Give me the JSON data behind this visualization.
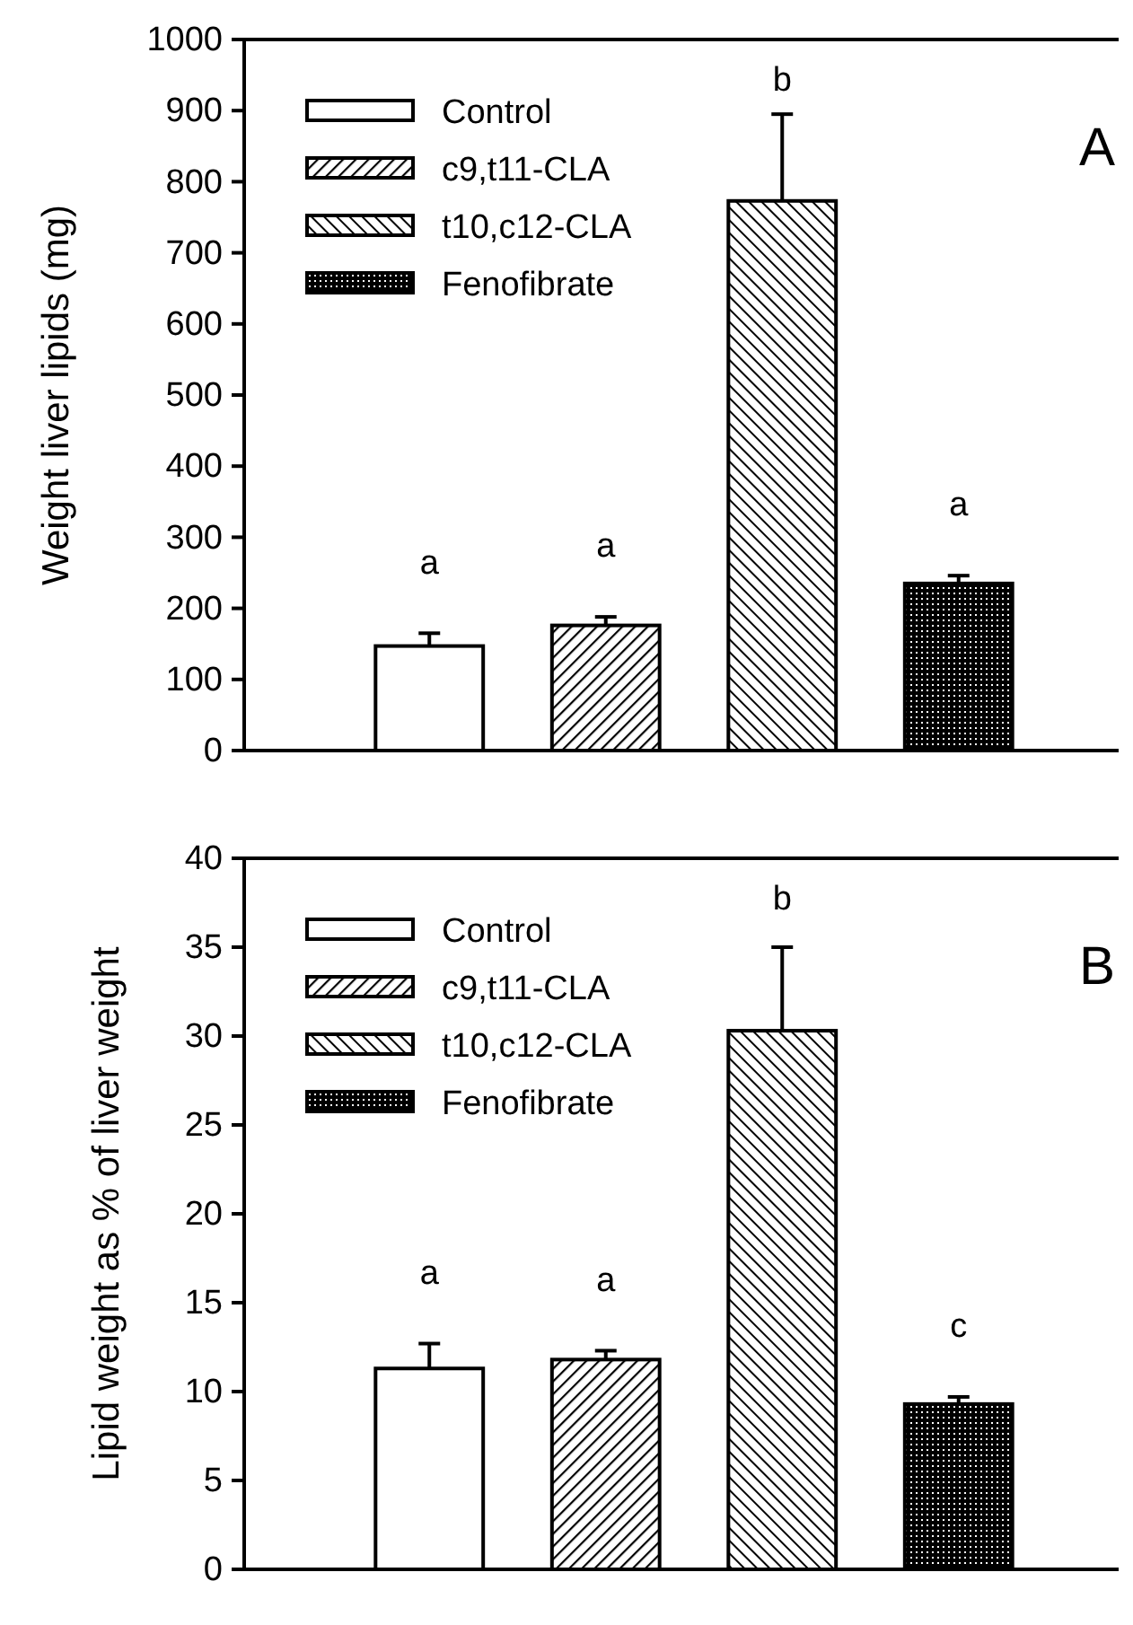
{
  "chart_data": [
    {
      "type": "bar",
      "title": "A",
      "ylabel": "Weight liver lipids (mg)",
      "categories": [
        null
      ],
      "series": [
        {
          "name": "Control",
          "color": "#ffffff",
          "values": [
            147
          ],
          "errors": [
            18
          ]
        },
        {
          "name": "c9,t11-CLA",
          "color": "#000000",
          "values": [
            176
          ],
          "errors": [
            12
          ]
        },
        {
          "name": "t10,c12-CLA",
          "color": "#000000",
          "values": [
            773
          ],
          "errors": [
            122
          ]
        },
        {
          "name": "Fenofibrate",
          "color": "#000000",
          "values": [
            235
          ],
          "errors": [
            11
          ]
        }
      ],
      "ylim": [
        0,
        1000
      ],
      "yticks": [
        0,
        100,
        200,
        300,
        400,
        500,
        600,
        700,
        800,
        900,
        1000
      ],
      "legend": "top left",
      "grid": false,
      "annotations": [
        "a",
        "a",
        "b",
        "a"
      ]
    },
    {
      "type": "bar",
      "title": "B",
      "ylabel": "Lipid weight as % of liver weight",
      "categories": [
        null
      ],
      "series": [
        {
          "name": "Control",
          "color": "#ffffff",
          "values": [
            11.3
          ],
          "errors": [
            1.4
          ]
        },
        {
          "name": "c9,t11-CLA",
          "color": "#000000",
          "values": [
            11.8
          ],
          "errors": [
            0.5
          ]
        },
        {
          "name": "t10,c12-CLA",
          "color": "#000000",
          "values": [
            30.3
          ],
          "errors": [
            4.7
          ]
        },
        {
          "name": "Fenofibrate",
          "color": "#000000",
          "values": [
            9.3
          ],
          "errors": [
            0.4
          ]
        }
      ],
      "ylim": [
        0,
        40
      ],
      "yticks": [
        0,
        5,
        10,
        15,
        20,
        25,
        30,
        35,
        40
      ],
      "legend": "top left",
      "grid": false,
      "annotations": [
        "a",
        "a",
        "b",
        "c"
      ]
    }
  ]
}
